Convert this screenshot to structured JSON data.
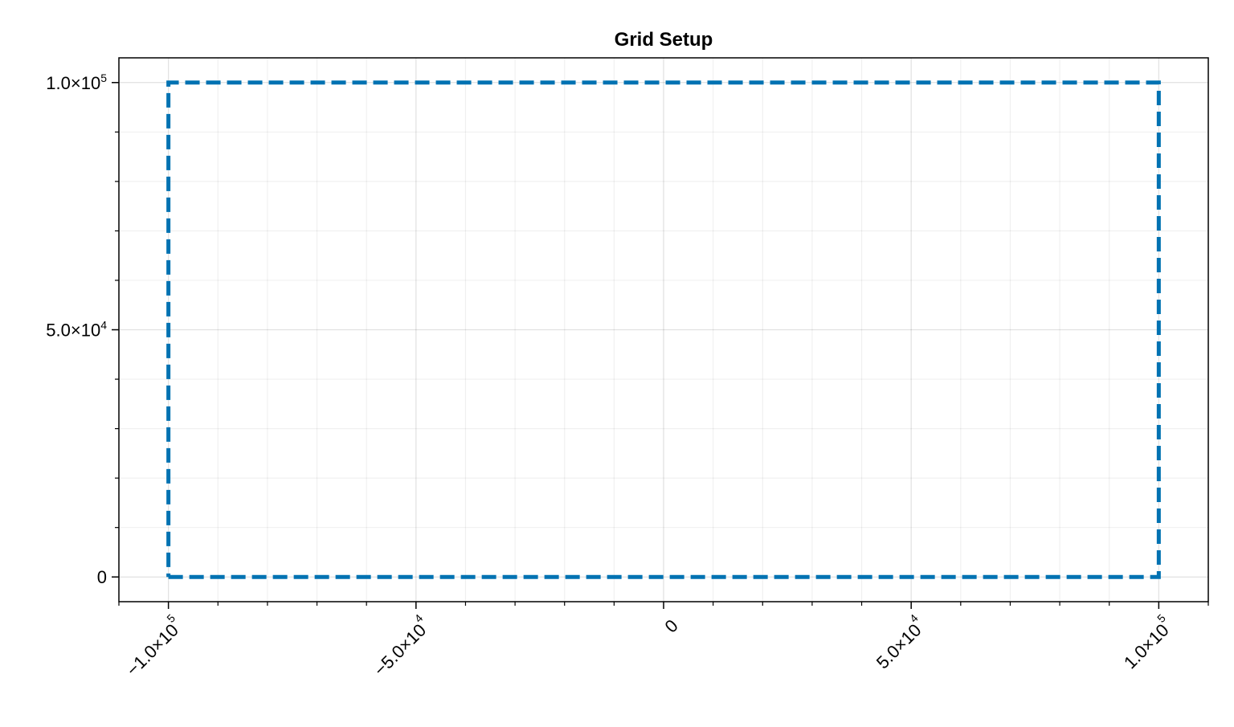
{
  "chart_data": {
    "type": "line",
    "title": "Grid Setup",
    "xlabel": "",
    "ylabel": "",
    "xlim": [
      -110000,
      110000
    ],
    "ylim": [
      -5000,
      105000
    ],
    "grid": true,
    "x_major_ticks": [
      {
        "value": -100000,
        "mant": "−1.0×10",
        "exp": "5"
      },
      {
        "value": -50000,
        "mant": "−5.0×10",
        "exp": "4"
      },
      {
        "value": 0,
        "mant": "0",
        "exp": ""
      },
      {
        "value": 50000,
        "mant": "5.0×10",
        "exp": "4"
      },
      {
        "value": 100000,
        "mant": "1.0×10",
        "exp": "5"
      }
    ],
    "y_major_ticks": [
      {
        "value": 0,
        "mant": "0",
        "exp": ""
      },
      {
        "value": 50000,
        "mant": "5.0×10",
        "exp": "4"
      },
      {
        "value": 100000,
        "mant": "1.0×10",
        "exp": "5"
      }
    ],
    "x_minor_step": 10000,
    "y_minor_step": 10000,
    "series": [
      {
        "style": "dashed",
        "color": "#0072b2",
        "x": [
          -100000,
          100000,
          100000,
          -100000,
          -100000
        ],
        "y": [
          0,
          0,
          100000,
          100000,
          0
        ]
      }
    ]
  }
}
